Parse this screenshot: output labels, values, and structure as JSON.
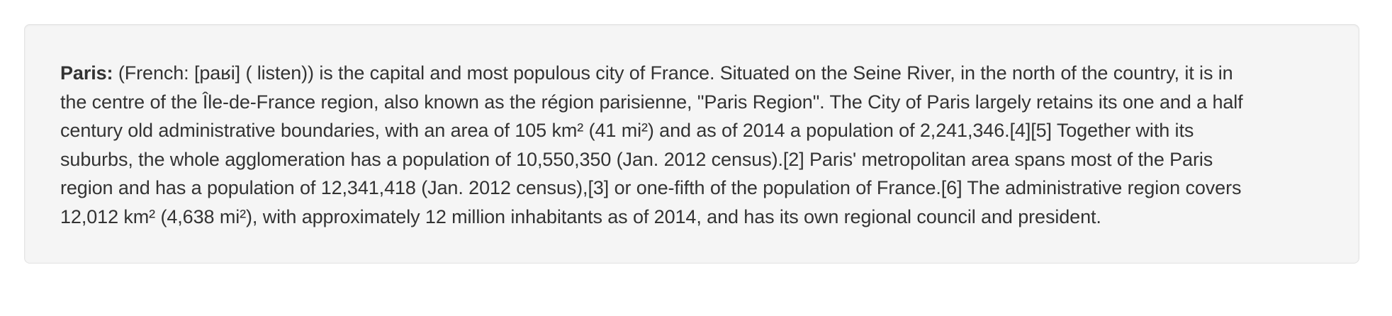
{
  "article": {
    "term": "Paris:",
    "lines": [
      "(French: [paʁi] ( listen)) is the capital and most populous city of France. Situated on the Seine River, in the north of the country, it is in",
      "the centre of the Île-de-France region, also known as the région parisienne, \"Paris Region\". The City of Paris largely retains its one and a half",
      "century old administrative boundaries, with an area of 105 km² (41 mi²) and as of 2014 a population of 2,241,346.[4][5] Together with its",
      "suburbs, the whole agglomeration has a population of 10,550,350 (Jan. 2012 census).[2] Paris' metropolitan area spans most of the Paris",
      "region and has a population of 12,341,418 (Jan. 2012 census),[3] or one-fifth of the population of France.[6] The administrative region covers",
      "12,012 km² (4,638 mi²), with approximately 12 million inhabitants as of 2014, and has its own regional council and president."
    ]
  }
}
